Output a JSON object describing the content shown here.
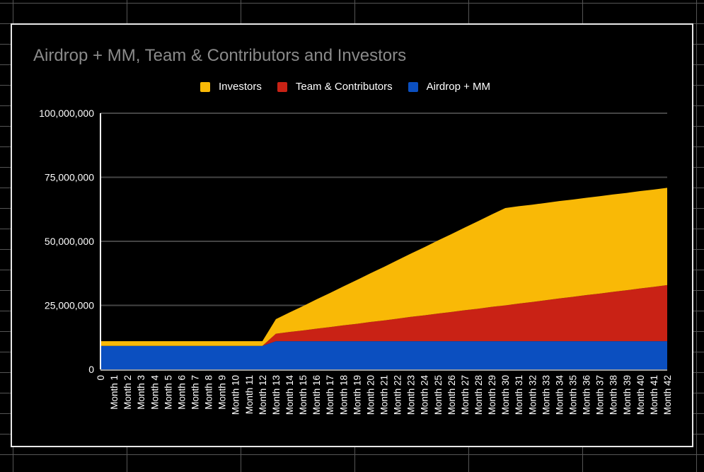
{
  "chart_data": {
    "type": "area",
    "stacked": true,
    "title": "Airdrop + MM, Team & Contributors and Investors",
    "xlabel": "",
    "ylabel": "",
    "ylim": [
      0,
      100000000
    ],
    "yticks": [
      "0",
      "25,000,000",
      "50,000,000",
      "75,000,000",
      "100,000,000"
    ],
    "ytick_values": [
      0,
      25000000,
      50000000,
      75000000,
      100000000
    ],
    "grid": true,
    "legend": "top",
    "categories": [
      "0",
      "Month 1",
      "Month 2",
      "Month 3",
      "Month 4",
      "Month 5",
      "Month 6",
      "Month 7",
      "Month 8",
      "Month 9",
      "Month 10",
      "Month 11",
      "Month 12",
      "Month 13",
      "Month 14",
      "Month 15",
      "Month 16",
      "Month 17",
      "Month 18",
      "Month 19",
      "Month 20",
      "Month 21",
      "Month 22",
      "Month 23",
      "Month 24",
      "Month 25",
      "Month 26",
      "Month 27",
      "Month 28",
      "Month 29",
      "Month 30",
      "Month 31",
      "Month 32",
      "Month 33",
      "Month 34",
      "Month 35",
      "Month 36",
      "Month 37",
      "Month 38",
      "Month 39",
      "Month 40",
      "Month 41",
      "Month 42"
    ],
    "series": [
      {
        "name": "Airdrop + MM",
        "color": "#0b4fc0",
        "values": [
          9200000,
          9200000,
          9200000,
          9200000,
          9200000,
          9200000,
          9200000,
          9200000,
          9200000,
          9200000,
          9200000,
          9200000,
          9200000,
          11000000,
          11000000,
          11000000,
          11000000,
          11000000,
          11000000,
          11000000,
          11000000,
          11000000,
          11000000,
          11000000,
          11000000,
          11000000,
          11000000,
          11000000,
          11000000,
          11000000,
          11000000,
          11000000,
          11000000,
          11000000,
          11000000,
          11000000,
          11000000,
          11000000,
          11000000,
          11000000,
          11000000,
          11000000,
          11000000
        ]
      },
      {
        "name": "Team & Contributors",
        "color": "#c92215",
        "values": [
          0,
          0,
          0,
          0,
          0,
          0,
          0,
          0,
          0,
          0,
          0,
          0,
          0,
          2900000,
          3600000,
          4200000,
          4900000,
          5500000,
          6200000,
          6800000,
          7500000,
          8100000,
          8800000,
          9500000,
          10100000,
          10800000,
          11400000,
          12100000,
          12700000,
          13400000,
          14000000,
          14700000,
          15300000,
          16000000,
          16700000,
          17300000,
          18000000,
          18600000,
          19300000,
          19900000,
          20600000,
          21200000,
          21900000
        ]
      },
      {
        "name": "Investors",
        "color": "#f9b906",
        "values": [
          1800000,
          1800000,
          1800000,
          1800000,
          1800000,
          1800000,
          1800000,
          1800000,
          1800000,
          1800000,
          1800000,
          1800000,
          1800000,
          5700000,
          7600000,
          9500000,
          11400000,
          13300000,
          15200000,
          17100000,
          19000000,
          20900000,
          22800000,
          24700000,
          26600000,
          28500000,
          30400000,
          32300000,
          34200000,
          36100000,
          38000000,
          38000000,
          38000000,
          38000000,
          38000000,
          38000000,
          38000000,
          38000000,
          38000000,
          38000000,
          38000000,
          38000000,
          38000000
        ]
      }
    ],
    "legend_order": [
      "Investors",
      "Team & Contributors",
      "Airdrop + MM"
    ]
  }
}
